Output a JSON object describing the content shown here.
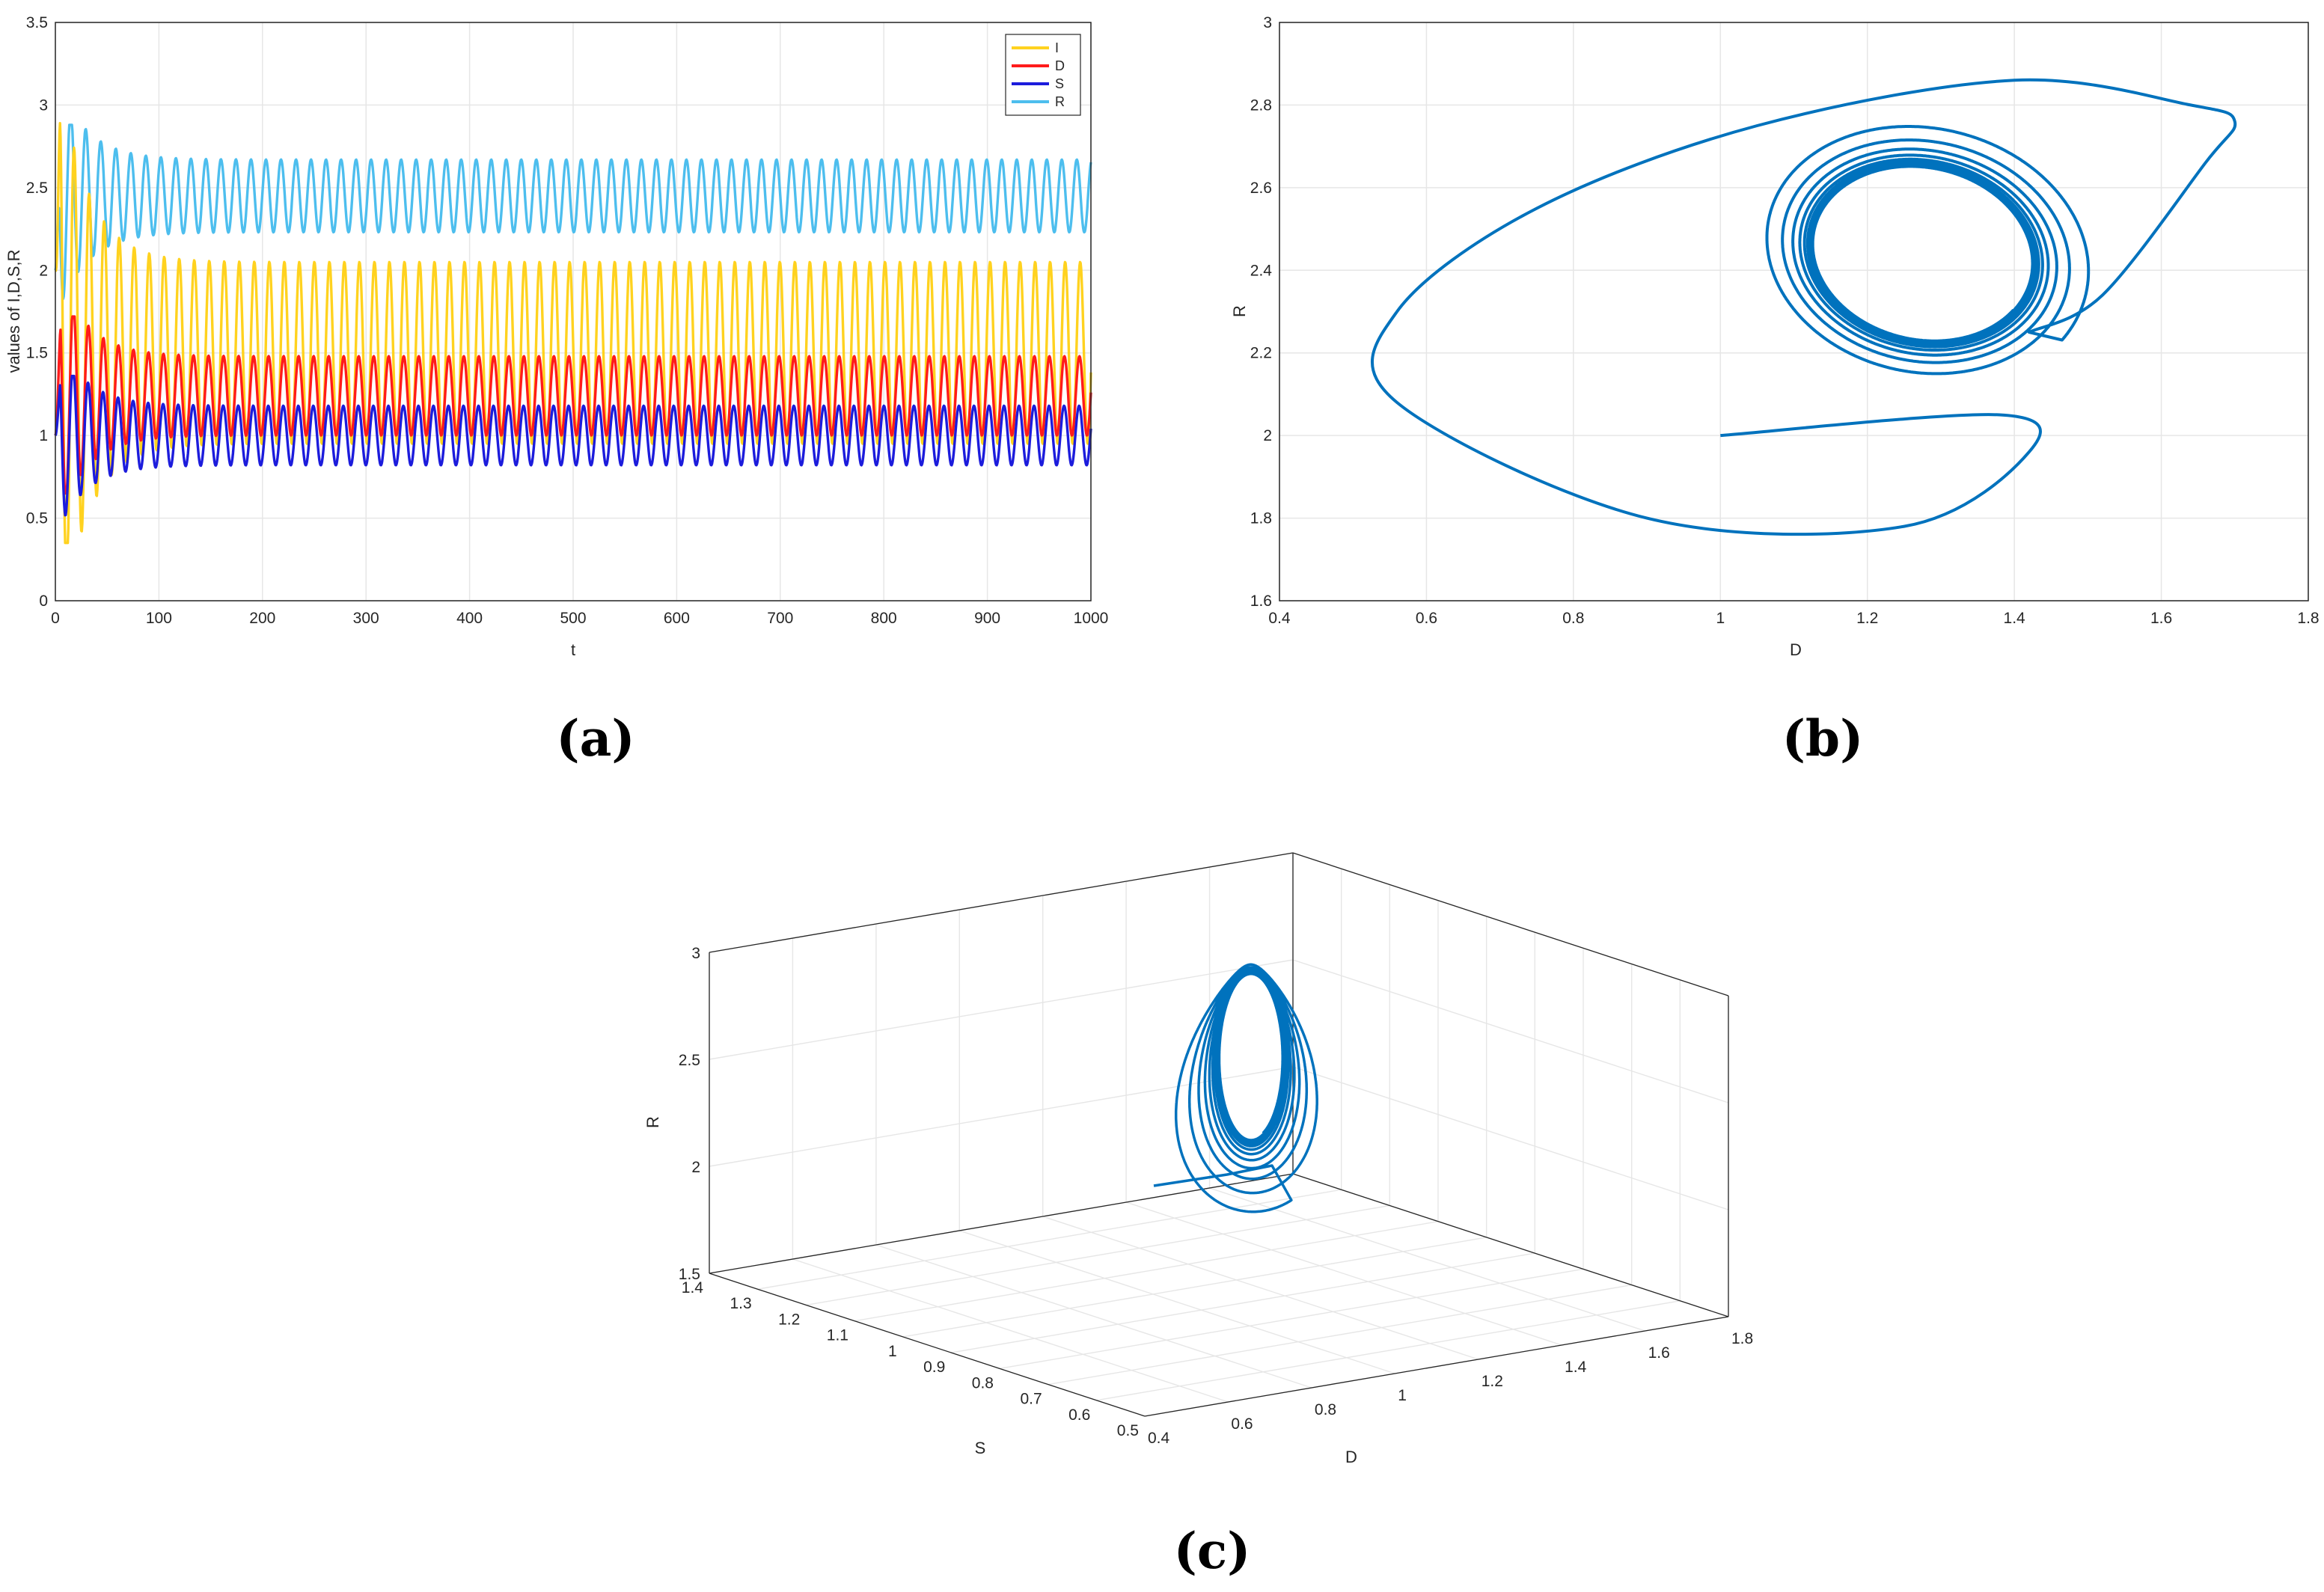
{
  "captions": {
    "a": "(a)",
    "b": "(b)",
    "c": "(c)"
  },
  "colors": {
    "I": "#ffd21f",
    "D": "#ff1b1b",
    "S": "#1c1cdc",
    "R": "#4dbeee",
    "orbit": "#0072bd",
    "grid": "#e6e6e6",
    "axis": "#262626"
  },
  "chart_data": [
    {
      "id": "a",
      "type": "line",
      "xlabel": "t",
      "ylabel": "values of I,D,S,R",
      "xlim": [
        0,
        1000
      ],
      "ylim": [
        0,
        3.5
      ],
      "xticks": [
        0,
        100,
        200,
        300,
        400,
        500,
        600,
        700,
        800,
        900,
        1000
      ],
      "yticks": [
        0,
        0.5,
        1,
        1.5,
        2,
        2.5,
        3,
        3.5
      ],
      "grid": true,
      "legend_position": "top-right",
      "series": [
        {
          "name": "I",
          "baseline": 1.5,
          "amplitude": 0.55,
          "period": 14.5,
          "init": 2.0,
          "init_peak": 3.12,
          "init_trough": 0.35
        },
        {
          "name": "D",
          "baseline": 1.24,
          "amplitude": 0.24,
          "period": 14.5,
          "init": 1.0,
          "init_peak": 1.72,
          "init_trough": 0.65
        },
        {
          "name": "S",
          "baseline": 1.0,
          "amplitude": 0.18,
          "period": 14.5,
          "init": 1.0,
          "init_peak": 1.36,
          "init_trough": 0.5
        },
        {
          "name": "R",
          "baseline": 2.45,
          "amplitude": 0.22,
          "period": 14.5,
          "init": 2.0,
          "init_peak": 2.88,
          "init_trough": 1.78
        }
      ]
    },
    {
      "id": "b",
      "type": "line",
      "xlabel": "D",
      "ylabel": "R",
      "xlim": [
        0.4,
        1.8
      ],
      "ylim": [
        1.6,
        3
      ],
      "xticks": [
        0.4,
        0.6,
        0.8,
        1,
        1.2,
        1.4,
        1.6,
        1.8
      ],
      "yticks": [
        1.6,
        1.8,
        2,
        2.2,
        2.4,
        2.6,
        2.8,
        3
      ],
      "grid": true,
      "trajectory": {
        "start": [
          1.0,
          2.0
        ],
        "first_loop": [
          [
            1.0,
            2.0
          ],
          [
            1.38,
            2.05
          ],
          [
            1.42,
            1.96
          ],
          [
            1.25,
            1.78
          ],
          [
            0.9,
            1.8
          ],
          [
            0.56,
            2.08
          ],
          [
            0.56,
            2.3
          ],
          [
            0.75,
            2.55
          ],
          [
            1.05,
            2.75
          ],
          [
            1.4,
            2.86
          ],
          [
            1.64,
            2.8
          ],
          [
            1.7,
            2.76
          ],
          [
            1.66,
            2.66
          ],
          [
            1.52,
            2.34
          ],
          [
            1.42,
            2.25
          ]
        ],
        "limit_cycle": {
          "center": [
            1.275,
            2.44
          ],
          "d_half_range": [
            0.16,
            0.36
          ],
          "r_half_range": [
            0.23,
            0.61
          ]
        }
      }
    },
    {
      "id": "c",
      "type": "line",
      "xlabel": "D",
      "ylabel": "S",
      "zlabel": "R",
      "xlim": [
        0.4,
        1.8
      ],
      "ylim": [
        0.5,
        1.4
      ],
      "zlim": [
        1.5,
        3
      ],
      "xticks": [
        0.4,
        0.6,
        0.8,
        1,
        1.2,
        1.4,
        1.6,
        1.8
      ],
      "yticks": [
        0.5,
        0.6,
        0.7,
        0.8,
        0.9,
        1,
        1.1,
        1.2,
        1.3,
        1.4
      ],
      "zticks": [
        1.5,
        2,
        2.5,
        3
      ],
      "grid": true
    }
  ]
}
